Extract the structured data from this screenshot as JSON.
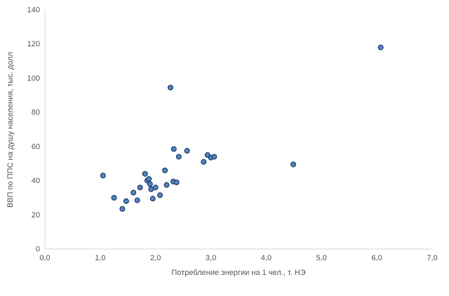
{
  "chart_data": {
    "type": "scatter",
    "title": "",
    "xlabel": "Потребление  энергии на 1 чел., т. НЭ",
    "ylabel": "ВВП по ППС на душу населения, тыс. долл",
    "xlim": [
      0,
      7
    ],
    "ylim": [
      0,
      140
    ],
    "grid": false,
    "legend": "none",
    "xtick_values": [
      0,
      1,
      2,
      3,
      4,
      5,
      6,
      7
    ],
    "xtick_labels": [
      "0,0",
      "1,0",
      "2,0",
      "3,0",
      "4,0",
      "5,0",
      "6,0",
      "7,0"
    ],
    "ytick_values": [
      0,
      20,
      40,
      60,
      80,
      100,
      120,
      140
    ],
    "ytick_labels": [
      "0",
      "20",
      "40",
      "60",
      "80",
      "100",
      "120",
      "140"
    ],
    "marker_fill": "#4f81bd",
    "marker_stroke": "#17375e",
    "axis_color": "#d9d9d9",
    "points": [
      {
        "x": 1.05,
        "y": 43
      },
      {
        "x": 1.25,
        "y": 30
      },
      {
        "x": 1.4,
        "y": 23.5
      },
      {
        "x": 1.47,
        "y": 28
      },
      {
        "x": 1.6,
        "y": 33
      },
      {
        "x": 1.67,
        "y": 28.5
      },
      {
        "x": 1.72,
        "y": 36
      },
      {
        "x": 1.81,
        "y": 44
      },
      {
        "x": 1.85,
        "y": 40
      },
      {
        "x": 1.88,
        "y": 41
      },
      {
        "x": 1.9,
        "y": 38
      },
      {
        "x": 1.92,
        "y": 35
      },
      {
        "x": 1.95,
        "y": 29.5
      },
      {
        "x": 2.0,
        "y": 36
      },
      {
        "x": 2.08,
        "y": 31.5
      },
      {
        "x": 2.17,
        "y": 46
      },
      {
        "x": 2.2,
        "y": 37.5
      },
      {
        "x": 2.27,
        "y": 94.5
      },
      {
        "x": 2.33,
        "y": 58.5
      },
      {
        "x": 2.32,
        "y": 39.5
      },
      {
        "x": 2.38,
        "y": 39
      },
      {
        "x": 2.42,
        "y": 54
      },
      {
        "x": 2.57,
        "y": 57.5
      },
      {
        "x": 2.87,
        "y": 51
      },
      {
        "x": 2.94,
        "y": 55
      },
      {
        "x": 3.0,
        "y": 53.5
      },
      {
        "x": 3.06,
        "y": 54
      },
      {
        "x": 4.49,
        "y": 49.5
      },
      {
        "x": 6.07,
        "y": 118
      }
    ]
  }
}
